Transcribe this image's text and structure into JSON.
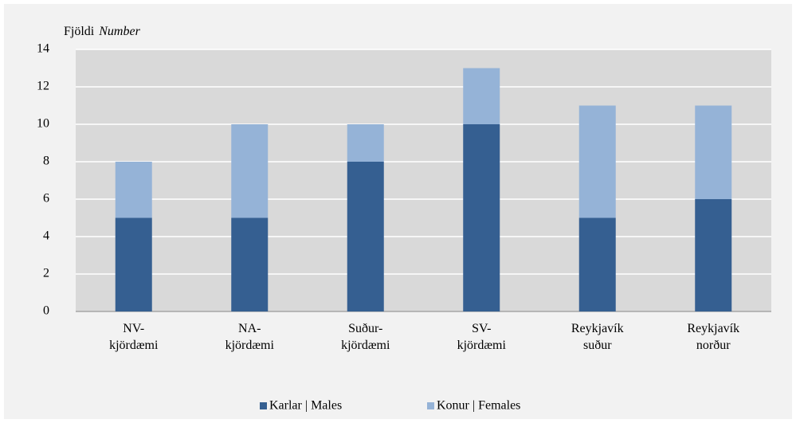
{
  "chart_data": {
    "type": "stacked_bar",
    "y_label": "Fjöldi",
    "y_label_en": "Number",
    "categories": [
      "NV-\nkjördæmi",
      "NA-\nkjördæmi",
      "Suður-\nkjördæmi",
      "SV-\nkjördæmi",
      "Reykjavík\nsuður",
      "Reykjavík\nnorður"
    ],
    "series": [
      {
        "name": "Karlar | Males",
        "color": "#355f91",
        "values": [
          5,
          5,
          8,
          10,
          5,
          6
        ]
      },
      {
        "name": "Konur | Females",
        "color": "#95b3d7",
        "values": [
          3,
          5,
          2,
          3,
          6,
          5
        ]
      }
    ],
    "ylim": [
      0,
      14
    ],
    "yticks": [
      0,
      2,
      4,
      6,
      8,
      10,
      12,
      14
    ],
    "grid": true,
    "legend": "bottom"
  }
}
